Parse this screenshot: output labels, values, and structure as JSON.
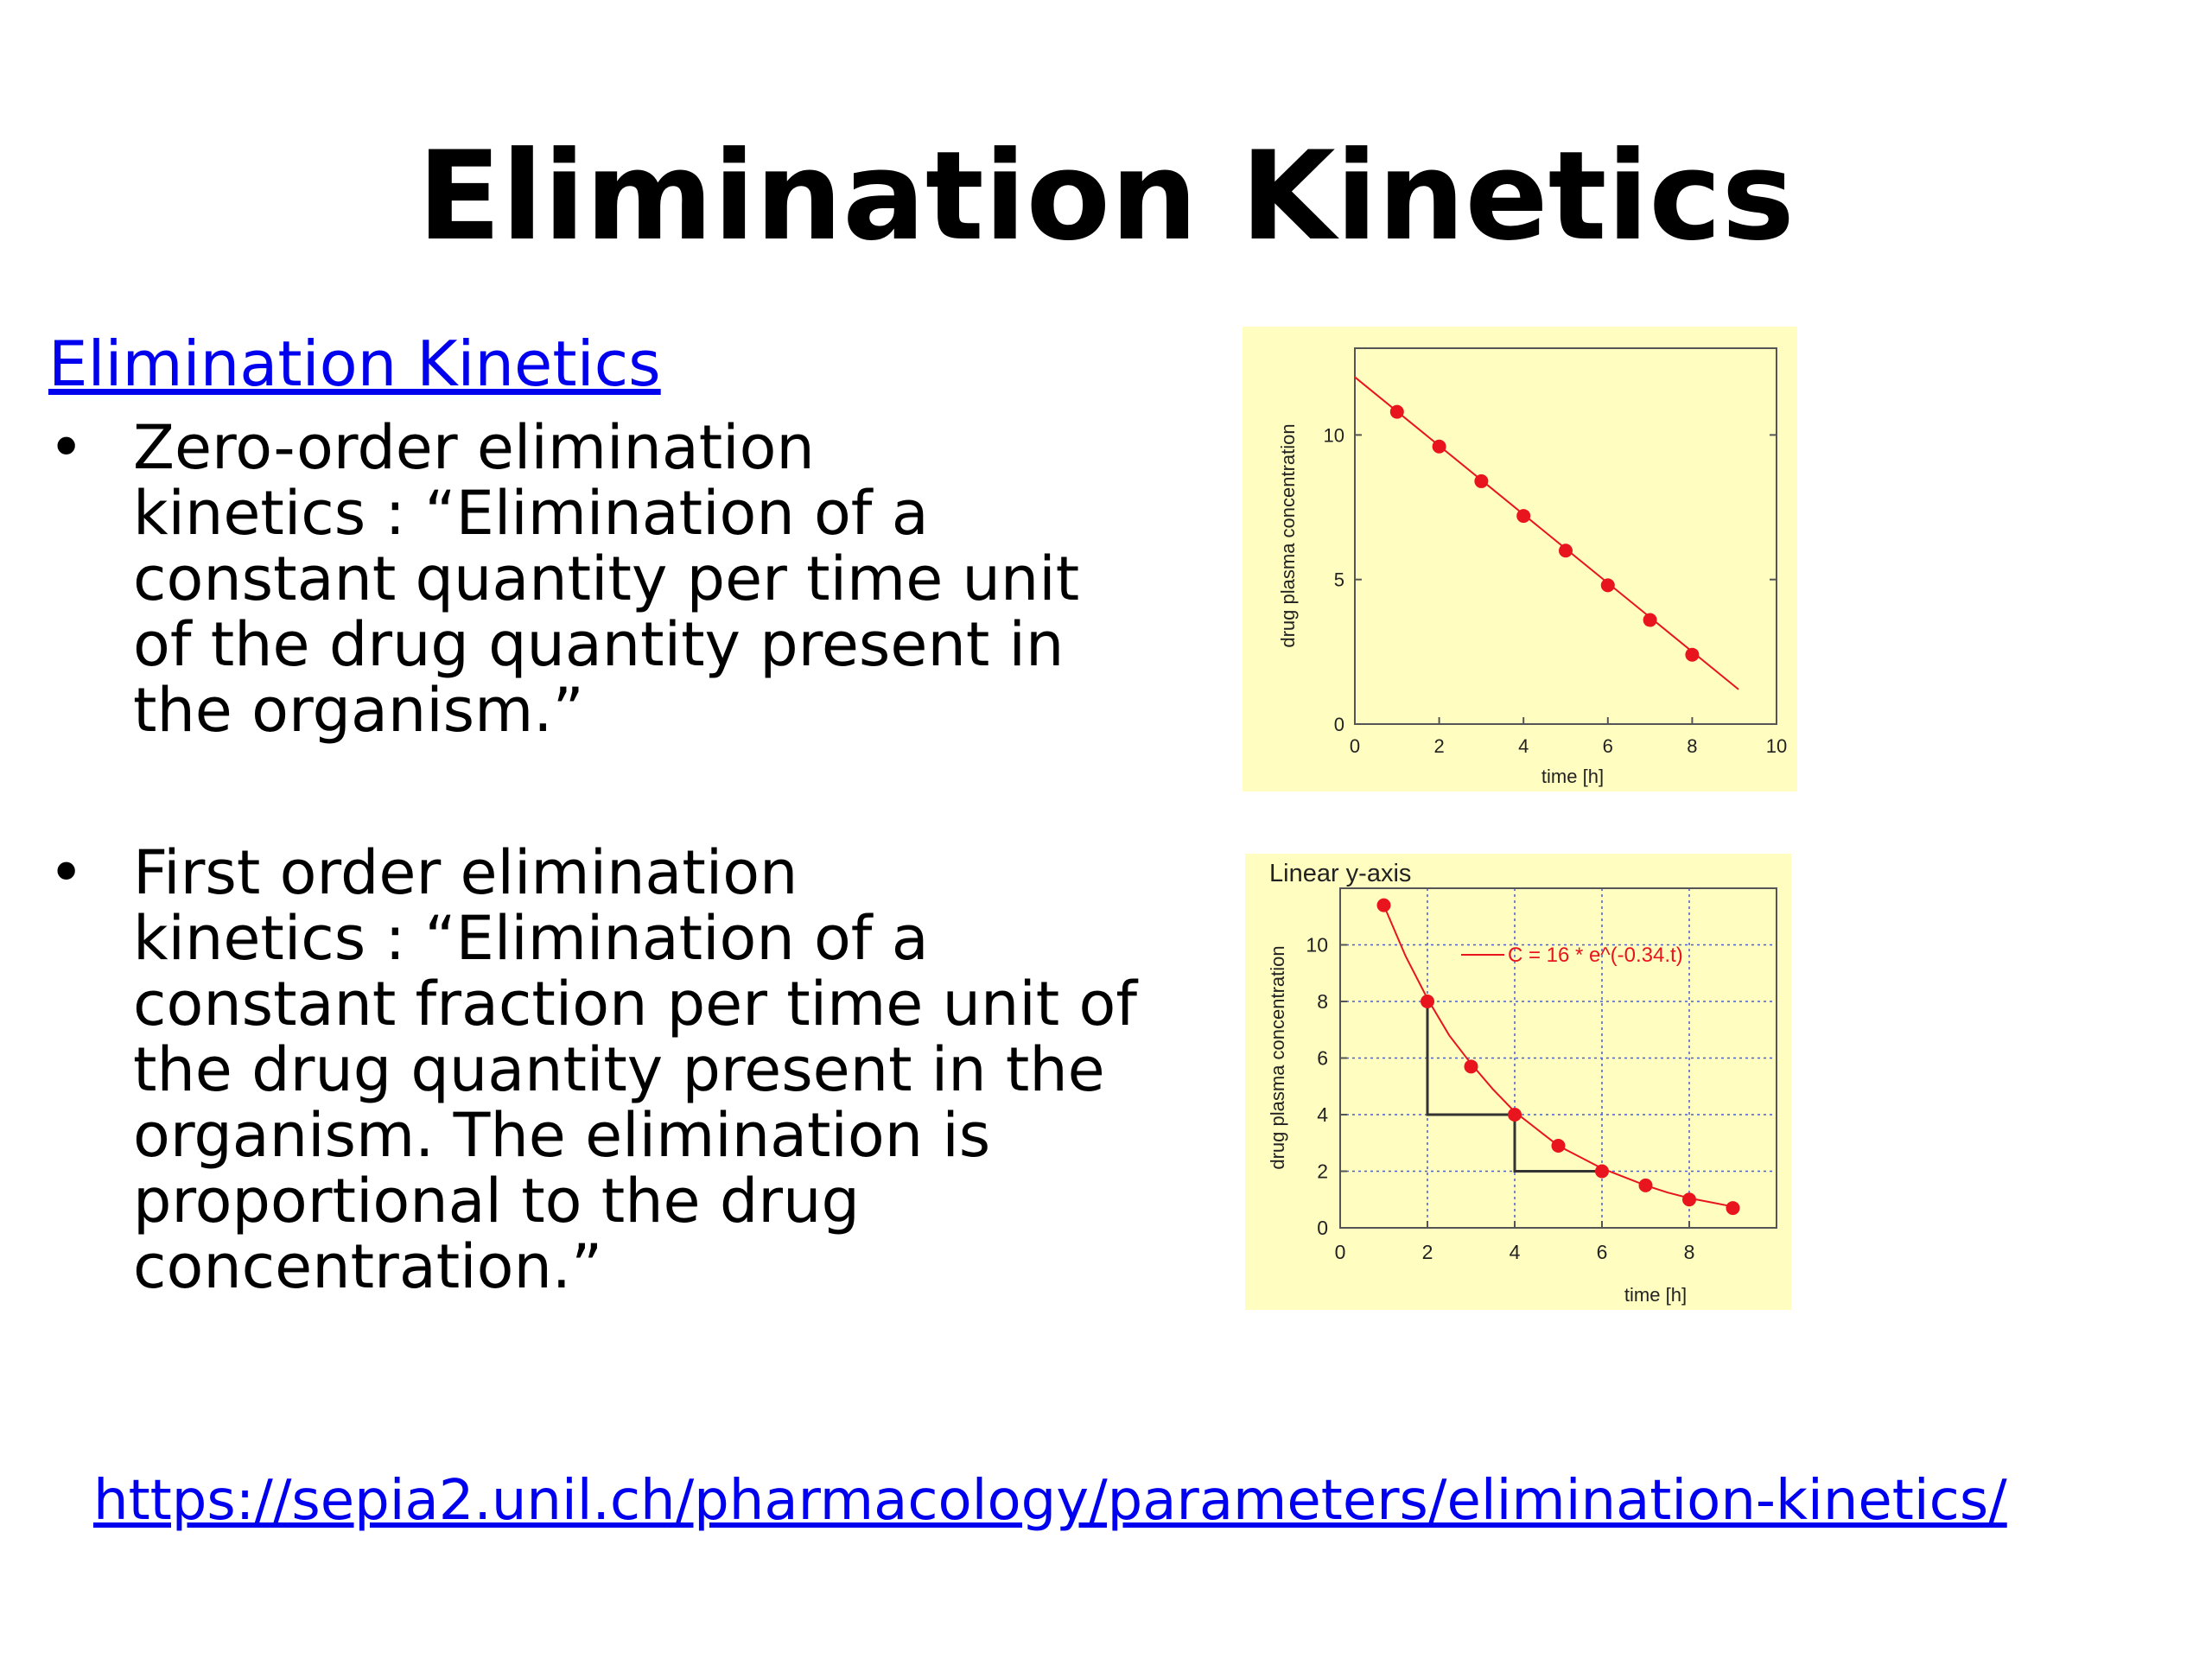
{
  "title": "Elimination Kinetics",
  "top_link": "Elimination Kinetics",
  "bullets": [
    {
      "marker": "•",
      "text": "Zero-order elimination\nkinetics : “Elimination of a\nconstant quantity per time unit\nof the drug quantity present in\nthe organism.”"
    },
    {
      "marker": "•",
      "text": "First order elimination\nkinetics : “Elimination of a\nconstant fraction per time unit of\nthe drug quantity present in the\norganism. The elimination is\nproportional to the drug\nconcentration.”"
    }
  ],
  "footer_link": "https://sepia2.unil.ch/pharmacology/parameters/elimination-kinetics/",
  "colors": {
    "panel": "#fffec0",
    "series": "#e8141e",
    "link": "#0000ee"
  },
  "chart_data": [
    {
      "type": "line",
      "title": "",
      "xlabel": "time [h]",
      "ylabel": "drug plasma concentration",
      "xlim": [
        0,
        10
      ],
      "ylim": [
        0,
        13
      ],
      "xticks": [
        0,
        2,
        4,
        6,
        8,
        10
      ],
      "yticks": [
        0,
        5,
        10
      ],
      "grid": false,
      "series": [
        {
          "line": {
            "x": [
              0,
              9.1
            ],
            "y": [
              12.0,
              1.2
            ]
          },
          "points": {
            "x": [
              1,
              2,
              3,
              4,
              5,
              6,
              7,
              8
            ],
            "y": [
              10.8,
              9.6,
              8.4,
              7.2,
              6.0,
              4.8,
              3.6,
              2.4
            ]
          }
        }
      ]
    },
    {
      "type": "line",
      "title": "Linear y-axis",
      "xlabel": "time [h]",
      "ylabel": "drug plasma concentration",
      "xlim": [
        0,
        10
      ],
      "ylim": [
        0,
        12
      ],
      "xticks": [
        0,
        2,
        4,
        6,
        8
      ],
      "yticks": [
        0,
        2,
        4,
        6,
        8,
        10
      ],
      "grid": true,
      "legend": "top-right",
      "series": [
        {
          "name": "C = 16 * e^(-0.34.t)",
          "curve": {
            "x": [
              1,
              1.5,
              2,
              2.5,
              3,
              3.5,
              4,
              4.5,
              5,
              5.5,
              6,
              6.5,
              7,
              7.5,
              8,
              8.5,
              9
            ],
            "y": [
              11.4,
              9.6,
              8.1,
              6.8,
              5.8,
              4.9,
              4.1,
              3.5,
              2.9,
              2.5,
              2.1,
              1.8,
              1.5,
              1.25,
              1.05,
              0.9,
              0.75
            ]
          },
          "points": {
            "x": [
              1,
              2,
              3,
              4,
              5,
              6,
              7,
              8,
              9
            ],
            "y": [
              11.4,
              8.0,
              5.7,
              4.0,
              2.9,
              2.0,
              1.5,
              1.0,
              0.7
            ]
          }
        }
      ],
      "step_guides": [
        {
          "x": [
            2,
            2,
            4
          ],
          "y": [
            8,
            4,
            4
          ]
        },
        {
          "x": [
            4,
            4,
            6
          ],
          "y": [
            4,
            2,
            2
          ]
        }
      ]
    }
  ]
}
